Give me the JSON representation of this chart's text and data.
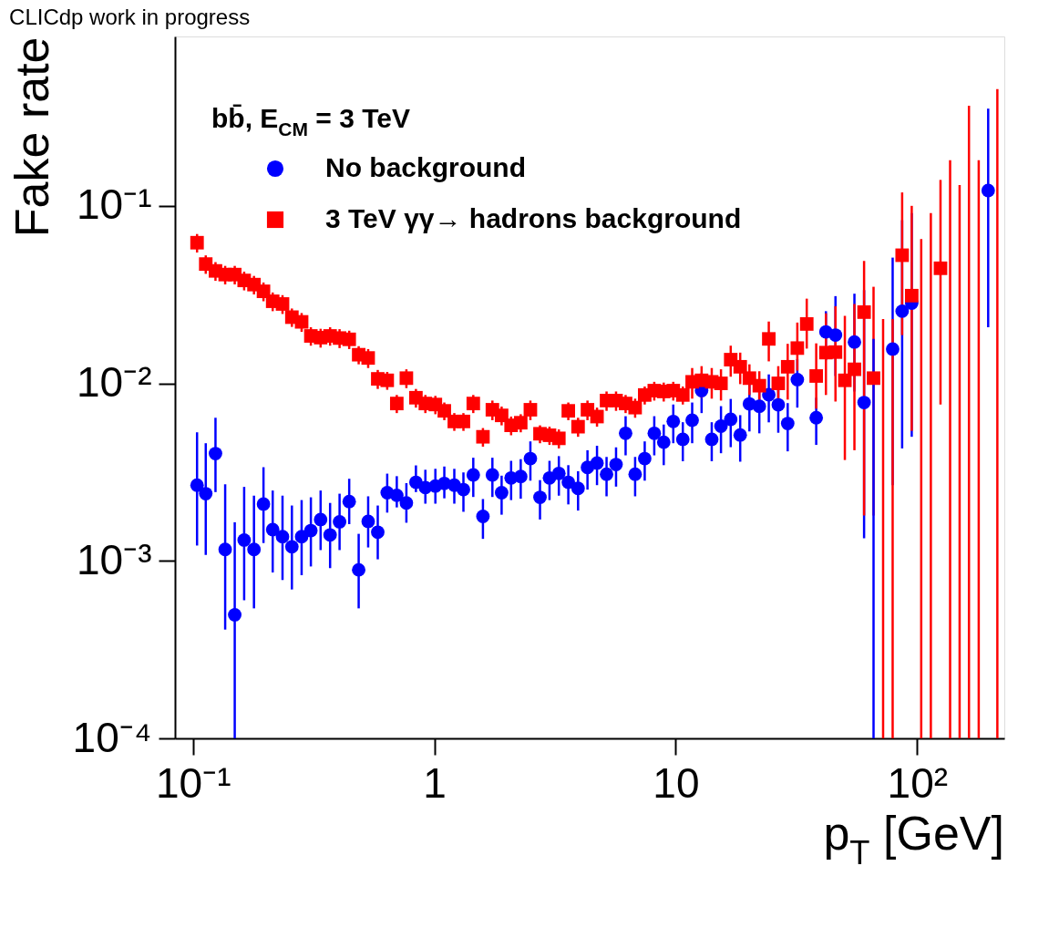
{
  "chart_data": {
    "type": "scatter",
    "title": "CLICdp work in progress",
    "xlabel": "p$_{T}$ [GeV]",
    "ylabel": "Fake rate",
    "legend_title": "bb̄, E$_{CM}$ =  3 TeV",
    "legend": "top left",
    "grid": false,
    "log": "xy",
    "xlim": [
      0.088,
      220
    ],
    "ylim": [
      0.0001,
      0.9
    ],
    "xticks": [
      {
        "value": 0.1,
        "label": "10⁻¹"
      },
      1,
      10,
      {
        "value": 100,
        "label": "10²"
      }
    ],
    "yticks": [
      {
        "value": 0.0001,
        "label": "10⁻⁴"
      },
      {
        "value": 0.001,
        "label": "10⁻³"
      },
      {
        "value": 0.01,
        "label": "10⁻²"
      },
      {
        "value": 0.1,
        "label": "10⁻¹"
      }
    ],
    "x": [
      0.104,
      0.113,
      0.124,
      0.136,
      0.149,
      0.163,
      0.179,
      0.196,
      0.214,
      0.235,
      0.257,
      0.282,
      0.308,
      0.338,
      0.37,
      0.405,
      0.444,
      0.486,
      0.532,
      0.583,
      0.638,
      0.699,
      0.766,
      0.839,
      0.918,
      1.01,
      1.1,
      1.21,
      1.32,
      1.45,
      1.59,
      1.74,
      1.9,
      2.08,
      2.28,
      2.5,
      2.74,
      3.0,
      3.28,
      3.59,
      3.94,
      4.31,
      4.72,
      5.17,
      5.66,
      6.2,
      6.79,
      7.44,
      8.15,
      8.92,
      9.77,
      10.7,
      11.7,
      12.8,
      14.1,
      15.4,
      16.9,
      18.5,
      20.2,
      22.2,
      24.3,
      26.6,
      29.1,
      31.9,
      34.9,
      38.2,
      41.9,
      45.9,
      50.2,
      55.0,
      60.3,
      66.0,
      79.2,
      86.7,
      95.0,
      125,
      197
    ],
    "series": [
      {
        "name": "No background",
        "color": "#0000ff",
        "marker": "circle",
        "values": [
          0.00267,
          0.00239,
          0.00402,
          0.00116,
          0.000497,
          0.00131,
          0.00116,
          0.00209,
          0.0015,
          0.00137,
          0.0012,
          0.00137,
          0.00148,
          0.00171,
          0.0014,
          0.00166,
          0.00216,
          0.00089,
          0.00167,
          0.00145,
          0.00242,
          0.00234,
          0.00212,
          0.00277,
          0.00259,
          0.00264,
          0.00273,
          0.00267,
          0.00252,
          0.00305,
          0.00178,
          0.00305,
          0.00242,
          0.00293,
          0.00299,
          0.00377,
          0.00228,
          0.00293,
          0.00311,
          0.00277,
          0.00256,
          0.00336,
          0.00356,
          0.00308,
          0.00349,
          0.00523,
          0.00308,
          0.00377,
          0.00523,
          0.00466,
          0.0061,
          0.00484,
          0.0062,
          0.0091,
          0.00484,
          0.00574,
          0.00627,
          0.00512,
          0.00766,
          0.00743,
          0.00863,
          0.00757,
          0.00594,
          0.0105,
          null,
          0.0064,
          0.0195,
          0.0187,
          null,
          0.0171,
          0.0078,
          null,
          0.0156,
          0.0255,
          0.0283,
          null,
          0.122
        ],
        "errors": [
          [
            0.00122,
            0.0053
          ],
          [
            0.00108,
            0.0046
          ],
          [
            0.00244,
            0.0064
          ],
          [
            0.00041,
            0.0027
          ],
          [
            0.0001,
            0.00165
          ],
          [
            0.0006,
            0.00261
          ],
          [
            0.00054,
            0.00233
          ],
          [
            0.00126,
            0.00337
          ],
          [
            0.00086,
            0.00249
          ],
          [
            0.00078,
            0.00233
          ],
          [
            0.00069,
            0.00205
          ],
          [
            0.00083,
            0.0022
          ],
          [
            0.00093,
            0.00228
          ],
          [
            0.00115,
            0.00249
          ],
          [
            0.00091,
            0.00212
          ],
          [
            0.00115,
            0.00239
          ],
          [
            0.00161,
            0.0029
          ],
          [
            0.00054,
            0.00142
          ],
          [
            0.00119,
            0.00231
          ],
          [
            0.00102,
            0.00205
          ],
          [
            0.00187,
            0.0031
          ],
          [
            0.002,
            0.003
          ],
          [
            0.00164,
            0.00274
          ],
          [
            0.00244,
            0.00345
          ],
          [
            0.0021,
            0.00326
          ],
          [
            0.0021,
            0.0033
          ],
          [
            0.00225,
            0.0034
          ],
          [
            0.0021,
            0.0033
          ],
          0.00063,
          0.00076,
          0.00045,
          0.00076,
          0.0006,
          0.00073,
          0.00075,
          0.00094,
          0.00057,
          0.00073,
          0.00078,
          0.00069,
          0.00064,
          0.00084,
          0.00089,
          0.00077,
          0.00087,
          0.0013,
          0.00077,
          0.00094,
          0.0013,
          0.0012,
          0.0015,
          0.0012,
          0.0016,
          0.0023,
          0.0012,
          0.0017,
          0.0019,
          0.0015,
          0.0023,
          0.0022,
          0.0026,
          0.0023,
          0.0018,
          0.0032,
          null,
          0.0019,
          0.006,
          [
            0.011,
            0.031
          ],
          null,
          [
            0.009,
            0.032
          ],
          [
            0.00134,
            0.0335
          ],
          null,
          [
            0.00267,
            0.0511
          ],
          [
            0.0043,
            0.083
          ],
          [
            0.005,
            0.091
          ],
          null,
          [
            0.0207,
            0.353
          ]
        ]
      },
      {
        "name": "3 TeV γγ→ hadrons background",
        "color": "#ff0000",
        "marker": "square",
        "values": [
          0.062,
          0.047,
          0.043,
          0.041,
          0.041,
          0.038,
          0.036,
          0.033,
          0.029,
          0.028,
          0.0236,
          0.0222,
          0.0185,
          0.0181,
          0.0185,
          0.018,
          0.0177,
          0.0145,
          0.0139,
          0.0106,
          0.0104,
          0.0077,
          0.0107,
          0.0083,
          0.0077,
          0.0076,
          0.007,
          0.0061,
          0.0061,
          0.0077,
          0.005,
          0.0071,
          0.0066,
          0.0058,
          0.006,
          0.0071,
          0.0052,
          0.0051,
          0.0049,
          0.007,
          0.0057,
          0.0071,
          0.0065,
          0.008,
          0.008,
          0.0077,
          0.0073,
          0.0086,
          0.0091,
          0.009,
          0.0091,
          0.0086,
          0.0102,
          0.0104,
          0.0102,
          0.01,
          0.0136,
          0.0124,
          0.0107,
          0.0097,
          0.0178,
          0.01,
          0.0124,
          0.0158,
          0.0216,
          0.011,
          0.0149,
          0.015,
          0.0104,
          0.012,
          0.0252,
          0.0107,
          null,
          0.0527,
          0.0312,
          0.0445,
          null
        ],
        "errors": [
          0.0074,
          0.0056,
          0.0052,
          0.0049,
          0.0049,
          0.0046,
          0.0043,
          0.004,
          0.0035,
          0.0034,
          0.0028,
          0.0027,
          0.0022,
          0.0022,
          0.0022,
          0.0022,
          0.0021,
          0.0017,
          0.0017,
          0.0013,
          0.0012,
          0.0009,
          0.0013,
          0.001,
          0.0009,
          0.0009,
          0.0008,
          0.0007,
          0.0007,
          0.0009,
          0.0006,
          0.0009,
          0.0008,
          0.0007,
          0.0007,
          0.0009,
          0.0006,
          0.0006,
          0.0006,
          0.0008,
          0.0007,
          0.0009,
          0.0008,
          0.001,
          0.001,
          0.0009,
          0.0009,
          0.001,
          0.0011,
          0.0011,
          0.0011,
          0.001,
          0.002,
          0.0021,
          0.002,
          0.002,
          0.0027,
          0.0025,
          0.0021,
          0.002,
          0.0045,
          0.0025,
          0.0043,
          [
            0.0118,
            0.022
          ],
          [
            0.0157,
            0.03
          ],
          [
            0.0072,
            0.0168
          ],
          [
            0.0086,
            0.0248
          ],
          [
            0.0079,
            0.0272
          ],
          [
            0.0037,
            0.024
          ],
          [
            0.0042,
            0.028
          ],
          [
            0.0018,
            0.049
          ],
          [
            0.0018,
            0.035
          ],
          null,
          [
            0.0187,
            0.119
          ],
          [
            0.0054,
            0.1
          ],
          [
            0.0076,
            0.14
          ],
          null
        ]
      },
      {
        "type": "bar",
        "color": "#0000ff",
        "x": [
          66.0
        ],
        "base": [
          0.0001
        ],
        "values": [
          0.0177
        ]
      },
      {
        "type": "bar",
        "color": "#ff0000",
        "x": [
          72.3,
          79.2,
          104,
          114,
          137,
          150,
          164,
          180,
          215
        ],
        "base": [
          0.0001,
          0.0001,
          0.0001,
          0.0001,
          0.0001,
          0.0001,
          0.0001,
          0.0001,
          0.0001
        ],
        "values": [
          0.0229,
          0.0229,
          0.0649,
          0.0909,
          0.1809,
          0.1309,
          0.3659,
          0.1809,
          0.4549
        ]
      }
    ]
  }
}
